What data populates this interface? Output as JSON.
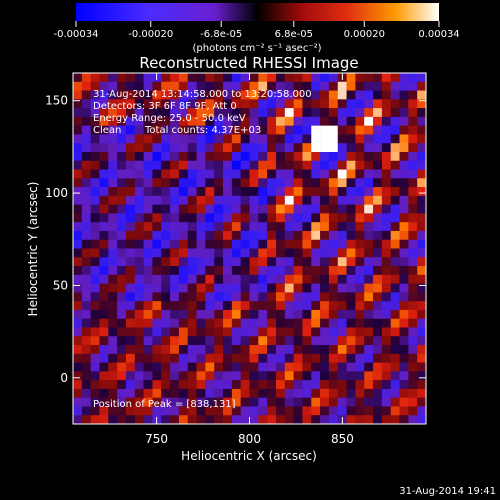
{
  "chart_data": {
    "type": "heatmap",
    "title": "Reconstructed RHESSI Image",
    "xlabel": "Heliocentric X (arcsec)",
    "ylabel": "Heliocentric Y (arcsec)",
    "xlim": [
      705,
      895
    ],
    "ylim": [
      -25,
      165
    ],
    "x_ticks": [
      750,
      800,
      850
    ],
    "x_tick_labels": [
      "750",
      "800",
      "850"
    ],
    "y_ticks": [
      0,
      50,
      100,
      150
    ],
    "y_tick_labels": [
      "0",
      "50",
      "100",
      "150"
    ],
    "colorbar": {
      "min": -0.00034,
      "max": 0.00034,
      "tick_values": [
        -0.00034,
        -0.0002,
        -6.8e-05,
        6.8e-05,
        0.0002,
        0.00034
      ],
      "tick_labels": [
        "-0.00034",
        "-0.00020",
        "-6.8e-05",
        "6.8e-05",
        "0.00020",
        "0.00034"
      ],
      "unit_label": "(photons cm⁻² s⁻¹ asec⁻²)",
      "colors": [
        "#0000ff",
        "#6a1fd0",
        "#000000",
        "#c81414",
        "#ff7a00",
        "#ffffff"
      ]
    },
    "annotations": {
      "time_range": "31-Aug-2014 13:14:58.000 to 13:20:58.000",
      "detectors": "Detectors: 3F 6F 8F 9F, Att 0",
      "energy_range": "Energy Range: 25.0 - 50.0 keV",
      "algorithm": "Clean",
      "total_counts": "Total counts: 4.37E+03",
      "peak_position": "Position of Peak = [838,131]"
    },
    "peak": {
      "x": 838,
      "y": 131
    },
    "grid_cells": 40
  },
  "footer": {
    "timestamp": "31-Aug-2014 19:41"
  }
}
